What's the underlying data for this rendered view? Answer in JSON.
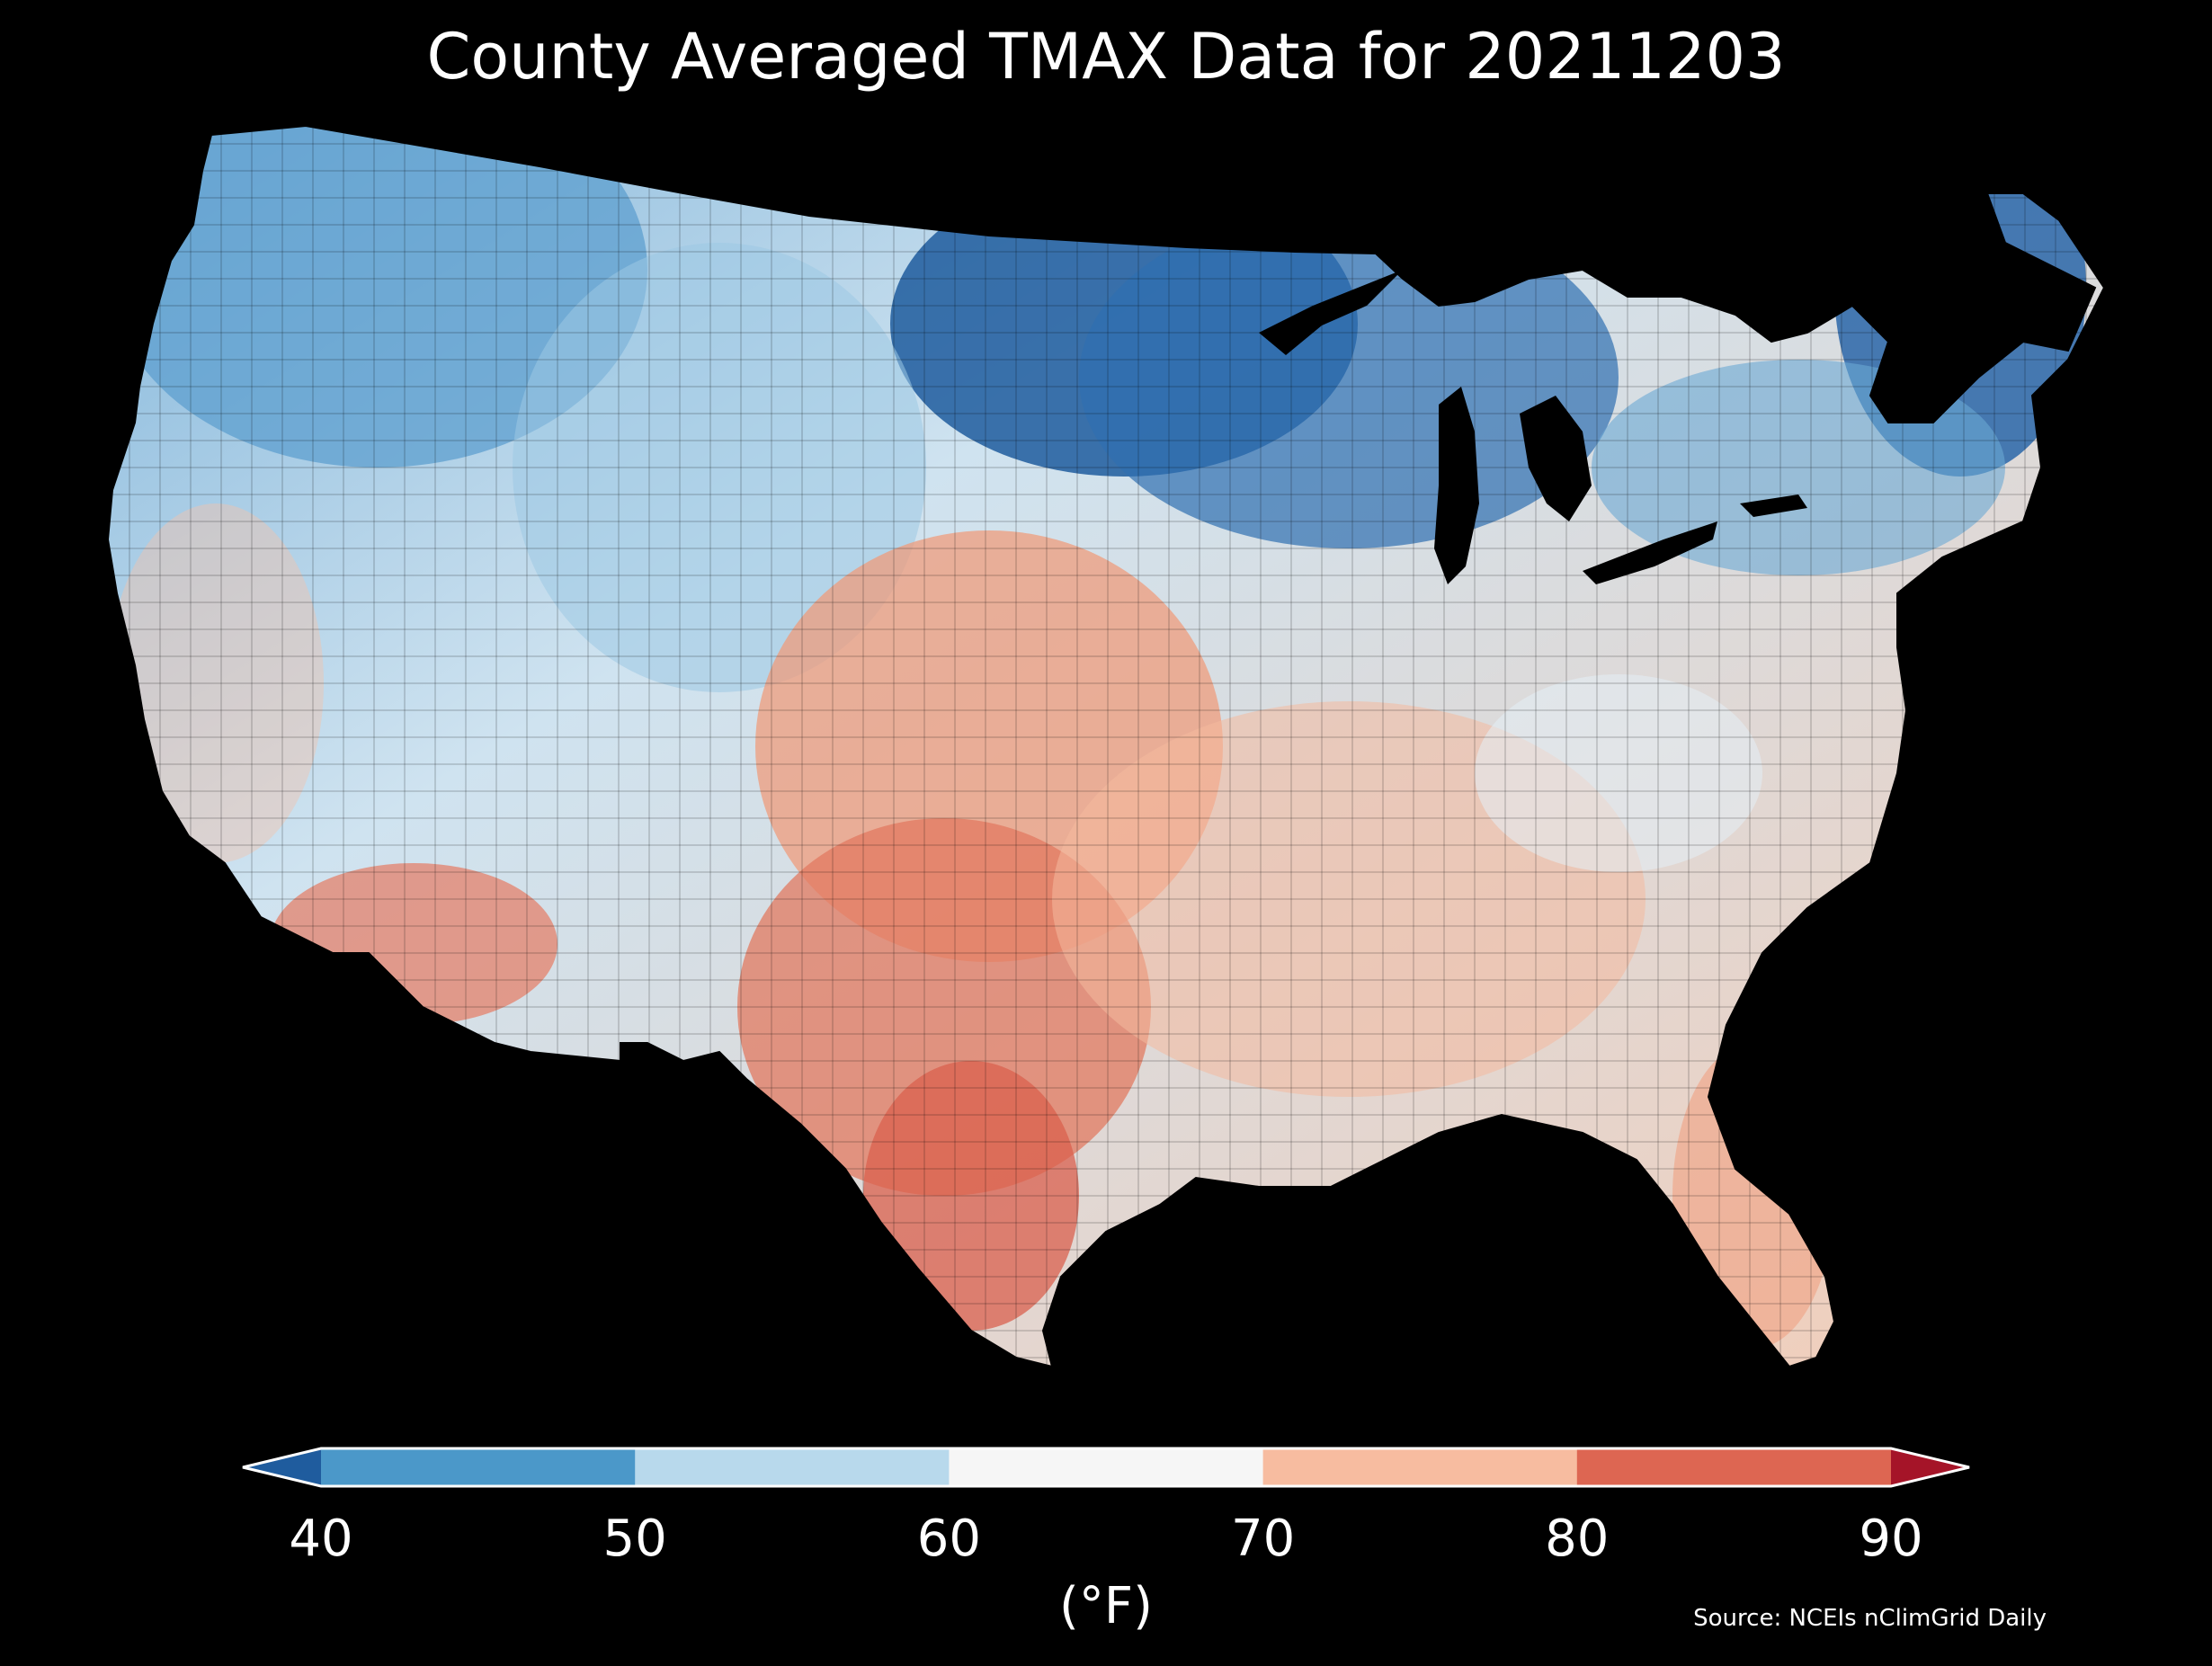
{
  "title": "County Averaged TMAX Data for 20211203",
  "colorbar": {
    "label": "(°F)",
    "ticks": [
      "40",
      "50",
      "60",
      "70",
      "80",
      "90"
    ],
    "bins": [
      {
        "range": "<40",
        "color": "#1f5c9e"
      },
      {
        "range": "40-50",
        "color": "#4b98c9"
      },
      {
        "range": "50-60",
        "color": "#b8d9ec"
      },
      {
        "range": "60-70",
        "color": "#f6f6f6"
      },
      {
        "range": "70-80",
        "color": "#f7bca0"
      },
      {
        "range": "80-90",
        "color": "#dd6652"
      },
      {
        "range": ">90",
        "color": "#a51428"
      }
    ],
    "orientation": "horizontal",
    "extend": "both"
  },
  "source": "Source: NCEIs nClimGrid Daily",
  "colors": {
    "background": "#000000",
    "border": "#000000",
    "text": "#ffffff"
  }
}
